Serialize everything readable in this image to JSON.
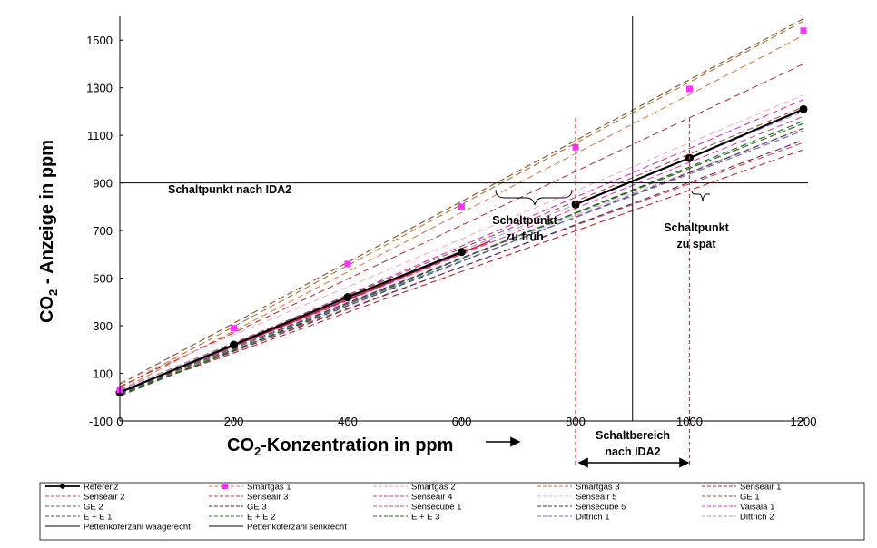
{
  "chart_data": {
    "type": "line",
    "xlabel_main": "CO",
    "xlabel_sub": "2",
    "xlabel_rest": "-Konzentration in ppm",
    "ylabel_main": "CO",
    "ylabel_sub": "2",
    "ylabel_rest": " - Anzeige in ppm",
    "xlim": [
      0,
      1200
    ],
    "ylim": [
      -100,
      1600
    ],
    "x_ticks": [
      "0",
      "200",
      "400",
      "600",
      "800",
      "1000",
      "1200"
    ],
    "x_tick_values": [
      0,
      200,
      400,
      600,
      800,
      1000,
      1200
    ],
    "y_ticks": [
      "-100",
      "100",
      "300",
      "500",
      "700",
      "900",
      "1100",
      "1300",
      "1500"
    ],
    "y_tick_values": [
      -100,
      100,
      300,
      500,
      700,
      900,
      1100,
      1300,
      1500
    ],
    "grid": false,
    "legend_position": "bottom",
    "annotations": {
      "threshold_label": "Schaltpunkt nach IDA2",
      "early_line1": "Schaltpunkt",
      "early_line2": "zu früh",
      "late_line1": "Schaltpunkt",
      "late_line2": "zu spät",
      "range_line1": "Schaltbereich",
      "range_line2": "nach IDA2"
    },
    "reference": {
      "name": "Referenz",
      "color": "#000000",
      "segments": [
        {
          "x": [
            0,
            200,
            400,
            600
          ],
          "y": [
            20,
            220,
            420,
            610
          ]
        },
        {
          "x": [
            800,
            1000,
            1200
          ],
          "y": [
            810,
            1005,
            1210
          ]
        }
      ]
    },
    "smartgas1_points": {
      "name": "Smartgas 1",
      "color": "#ff33ff",
      "x": [
        0,
        200,
        400,
        600,
        800,
        1000,
        1200
      ],
      "y": [
        30,
        290,
        560,
        800,
        1050,
        1295,
        1540
      ]
    },
    "reference_fit": {
      "x": [
        0,
        650
      ],
      "y": [
        20,
        655
      ],
      "color": "#cc2233"
    },
    "pettenkofer_horizontal": {
      "name": "Pettenkoferzahl waagerecht",
      "y": 900,
      "color": "#000000"
    },
    "pettenkofer_vertical": {
      "name": "Pettenkoferzahl senkrecht",
      "x": 900,
      "color": "#000000"
    },
    "range_bounds": {
      "x": [
        800,
        1000
      ],
      "color": "#e03030"
    },
    "series": [
      {
        "name": "Smartgas 1",
        "color": "#d98050",
        "y0": 30,
        "y1": 1520
      },
      {
        "name": "Smartgas 2",
        "color": "#e59ad6",
        "y0": 35,
        "y1": 1130
      },
      {
        "name": "Smartgas 3",
        "color": "#a87535",
        "y0": 40,
        "y1": 1580
      },
      {
        "name": "Senseair 1",
        "color": "#b02828",
        "y0": 15,
        "y1": 1040
      },
      {
        "name": "Senseair 2",
        "color": "#d54848",
        "y0": 25,
        "y1": 1070
      },
      {
        "name": "Senseair 3",
        "color": "#b03c3c",
        "y0": 45,
        "y1": 1400
      },
      {
        "name": "Senseair 4",
        "color": "#cc33cc",
        "y0": 20,
        "y1": 1250
      },
      {
        "name": "Senseair 5",
        "color": "#f0b0c8",
        "y0": 60,
        "y1": 1270
      },
      {
        "name": "GE 1",
        "color": "#8a5030",
        "y0": 55,
        "y1": 1590
      },
      {
        "name": "GE 2",
        "color": "#955050",
        "y0": 30,
        "y1": 1220
      },
      {
        "name": "GE 3",
        "color": "#6a2230",
        "y0": 20,
        "y1": 1150
      },
      {
        "name": "Sensecube 1",
        "color": "#c06070",
        "y0": 10,
        "y1": 1130
      },
      {
        "name": "Sensecube 5",
        "color": "#503070",
        "y0": 15,
        "y1": 1080
      },
      {
        "name": "Vaisala 1",
        "color": "#d040c0",
        "y0": 20,
        "y1": 1180
      },
      {
        "name": "E + E 1",
        "color": "#4a4a4a",
        "y0": 10,
        "y1": 1130
      },
      {
        "name": "E + E 2",
        "color": "#3a7a3a",
        "y0": 15,
        "y1": 1150
      },
      {
        "name": "E + E 3",
        "color": "#1f6a1f",
        "y0": 5,
        "y1": 1160
      },
      {
        "name": "Dittrich 1",
        "color": "#6070c0",
        "y0": 25,
        "y1": 1120
      },
      {
        "name": "Dittrich 2",
        "color": "#a898cc",
        "y0": 30,
        "y1": 1200
      }
    ],
    "legend": [
      "Referenz",
      "Smartgas 1",
      "Smartgas 2",
      "Smartgas 3",
      "Senseair 1",
      "Senseair 2",
      "Senseair 3",
      "Senseair 4",
      "Senseair 5",
      "GE 1",
      "GE 2",
      "GE 3",
      "Sensecube 1",
      "Sensecube 5",
      "Vaisala 1",
      "E + E 1",
      "E + E 2",
      "E + E 3",
      "Dittrich 1",
      "Dittrich 2",
      "Pettenkoferzahl waagerecht",
      "Pettenkoferzahl senkrecht"
    ]
  }
}
